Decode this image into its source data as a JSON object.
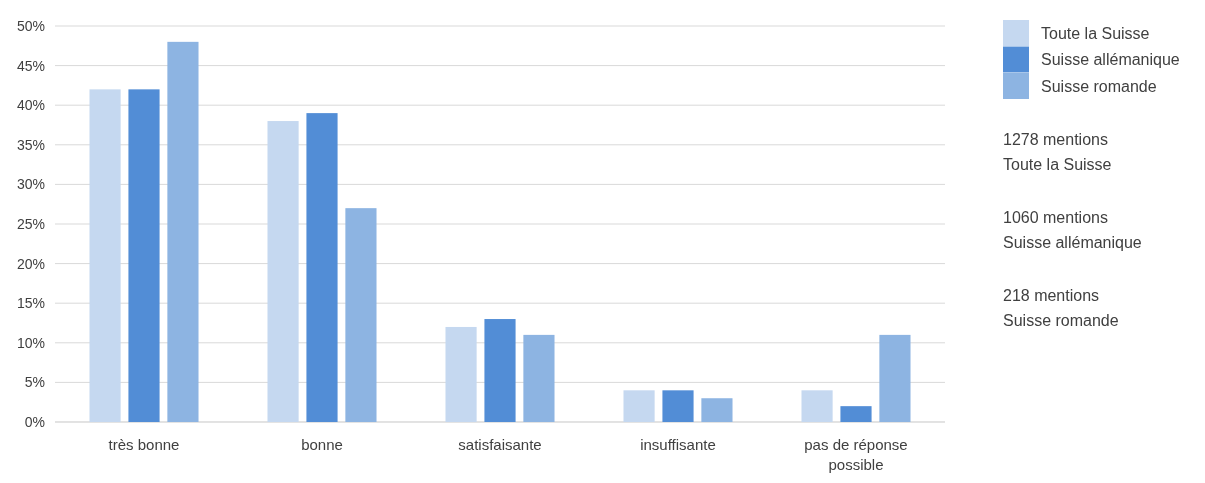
{
  "chart_data": {
    "type": "bar",
    "categories": [
      "très bonne",
      "bonne",
      "satisfaisante",
      "insuffisante",
      "pas de réponse possible"
    ],
    "series": [
      {
        "name": "Toute la Suisse",
        "color": "#c5d8f0",
        "values": [
          42,
          38,
          12,
          4,
          4
        ]
      },
      {
        "name": "Suisse allémanique",
        "color": "#528dd6",
        "values": [
          42,
          39,
          13,
          4,
          2
        ]
      },
      {
        "name": "Suisse romande",
        "color": "#8db4e2",
        "values": [
          48,
          27,
          11,
          3,
          11
        ]
      }
    ],
    "ylim": [
      0,
      50
    ],
    "yticks": [
      {
        "value": 0,
        "label": "0%"
      },
      {
        "value": 5,
        "label": "5%"
      },
      {
        "value": 10,
        "label": "10%"
      },
      {
        "value": 15,
        "label": "15%"
      },
      {
        "value": 20,
        "label": "20%"
      },
      {
        "value": 25,
        "label": "25%"
      },
      {
        "value": 30,
        "label": "30%"
      },
      {
        "value": 35,
        "label": "35%"
      },
      {
        "value": 40,
        "label": "40%"
      },
      {
        "value": 45,
        "label": "45%"
      },
      {
        "value": 50,
        "label": "50%"
      }
    ],
    "grid": "y",
    "legend": "top right",
    "annotations": [
      "1278 mentions\nToute la Suisse",
      "1060 mentions\nSuisse allémanique",
      "218 mentions\nSuisse romande"
    ]
  }
}
